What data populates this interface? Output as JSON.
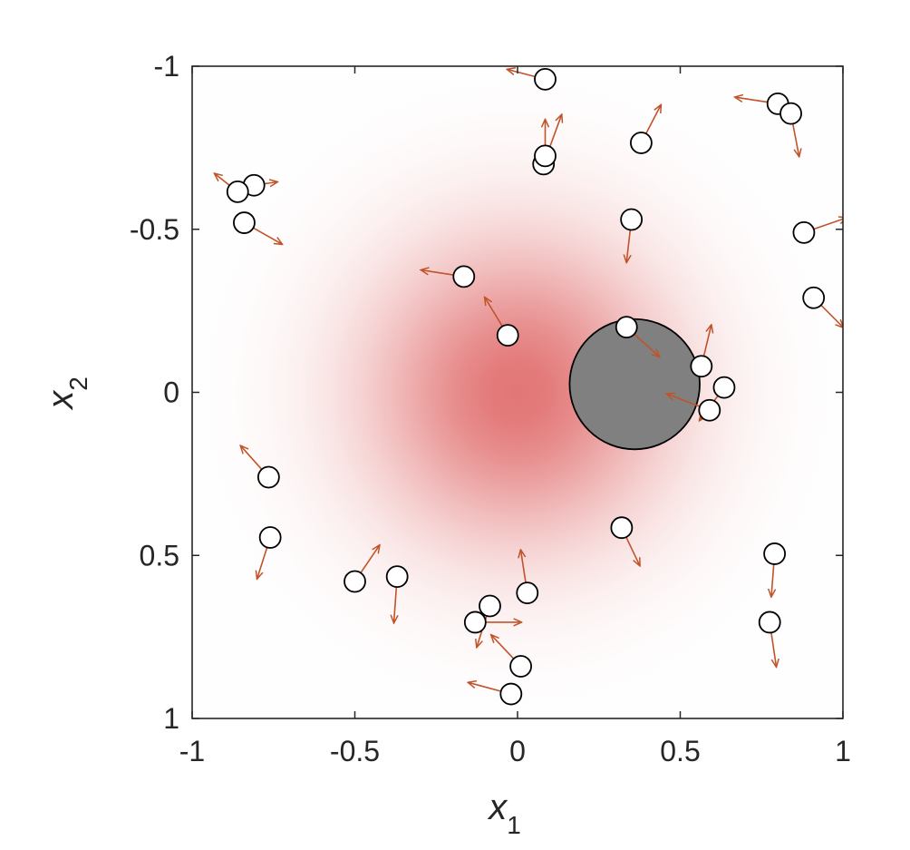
{
  "chart_data": {
    "type": "scatter",
    "title": "",
    "xlabel": "x",
    "xlabel_sub": "1",
    "ylabel": "x",
    "ylabel_sub": "2",
    "xlim": [
      -1,
      1
    ],
    "ylim": [
      -1,
      1
    ],
    "y_axis_reversed": true,
    "grid": false,
    "x_ticks": [
      -1,
      -0.5,
      0,
      0.5,
      1
    ],
    "x_tick_labels": [
      "-1",
      "-0.5",
      "0",
      "0.5",
      "1"
    ],
    "y_ticks": [
      -1,
      -0.5,
      0,
      0.5,
      1
    ],
    "y_tick_labels": [
      "-1",
      "-0.5",
      "0",
      "0.5",
      "1"
    ],
    "density_field": {
      "center": [
        0,
        0
      ],
      "sigma": 0.32,
      "color": "#e06a6a"
    },
    "obstacle": {
      "x": 0.36,
      "y": -0.025,
      "radius": 0.2,
      "color": "#808080"
    },
    "marker_color": "#ffffff",
    "arrow_color": "#c0532a",
    "particles": [
      {
        "x": 0.085,
        "y": -0.96,
        "dx": -0.115,
        "dy": -0.03
      },
      {
        "x": 0.8,
        "y": -0.885,
        "dx": -0.13,
        "dy": -0.02
      },
      {
        "x": 0.84,
        "y": -0.855,
        "dx": 0.025,
        "dy": 0.13
      },
      {
        "x": 0.08,
        "y": -0.7,
        "dx": 0.055,
        "dy": -0.15
      },
      {
        "x": 0.085,
        "y": -0.725,
        "dx": 0.0,
        "dy": -0.11
      },
      {
        "x": 0.38,
        "y": -0.765,
        "dx": 0.06,
        "dy": -0.115
      },
      {
        "x": -0.81,
        "y": -0.635,
        "dx": 0.07,
        "dy": -0.01
      },
      {
        "x": -0.86,
        "y": -0.615,
        "dx": -0.07,
        "dy": -0.055
      },
      {
        "x": -0.84,
        "y": -0.52,
        "dx": 0.115,
        "dy": 0.065
      },
      {
        "x": 0.35,
        "y": -0.53,
        "dx": -0.015,
        "dy": 0.13
      },
      {
        "x": 0.88,
        "y": -0.49,
        "dx": 0.13,
        "dy": -0.045
      },
      {
        "x": -0.165,
        "y": -0.355,
        "dx": -0.13,
        "dy": -0.02
      },
      {
        "x": 0.91,
        "y": -0.29,
        "dx": 0.09,
        "dy": 0.09
      },
      {
        "x": -0.03,
        "y": -0.175,
        "dx": -0.07,
        "dy": -0.115
      },
      {
        "x": 0.335,
        "y": -0.2,
        "dx": 0.1,
        "dy": 0.09
      },
      {
        "x": 0.565,
        "y": -0.08,
        "dx": 0.03,
        "dy": -0.125
      },
      {
        "x": 0.635,
        "y": -0.015,
        "dx": -0.075,
        "dy": 0.1
      },
      {
        "x": 0.59,
        "y": 0.055,
        "dx": -0.13,
        "dy": -0.05
      },
      {
        "x": -0.765,
        "y": 0.26,
        "dx": -0.085,
        "dy": -0.095
      },
      {
        "x": -0.76,
        "y": 0.445,
        "dx": -0.04,
        "dy": 0.125
      },
      {
        "x": 0.32,
        "y": 0.415,
        "dx": 0.055,
        "dy": 0.115
      },
      {
        "x": 0.79,
        "y": 0.495,
        "dx": -0.01,
        "dy": 0.13
      },
      {
        "x": -0.5,
        "y": 0.58,
        "dx": 0.075,
        "dy": -0.11
      },
      {
        "x": -0.37,
        "y": 0.565,
        "dx": -0.01,
        "dy": 0.14
      },
      {
        "x": 0.03,
        "y": 0.615,
        "dx": -0.02,
        "dy": -0.13
      },
      {
        "x": -0.085,
        "y": 0.655,
        "dx": -0.04,
        "dy": 0.125
      },
      {
        "x": -0.13,
        "y": 0.705,
        "dx": 0.14,
        "dy": 0.0
      },
      {
        "x": 0.775,
        "y": 0.705,
        "dx": 0.02,
        "dy": 0.135
      },
      {
        "x": 0.01,
        "y": 0.84,
        "dx": -0.09,
        "dy": -0.095
      },
      {
        "x": -0.02,
        "y": 0.925,
        "dx": -0.13,
        "dy": -0.035
      }
    ]
  }
}
